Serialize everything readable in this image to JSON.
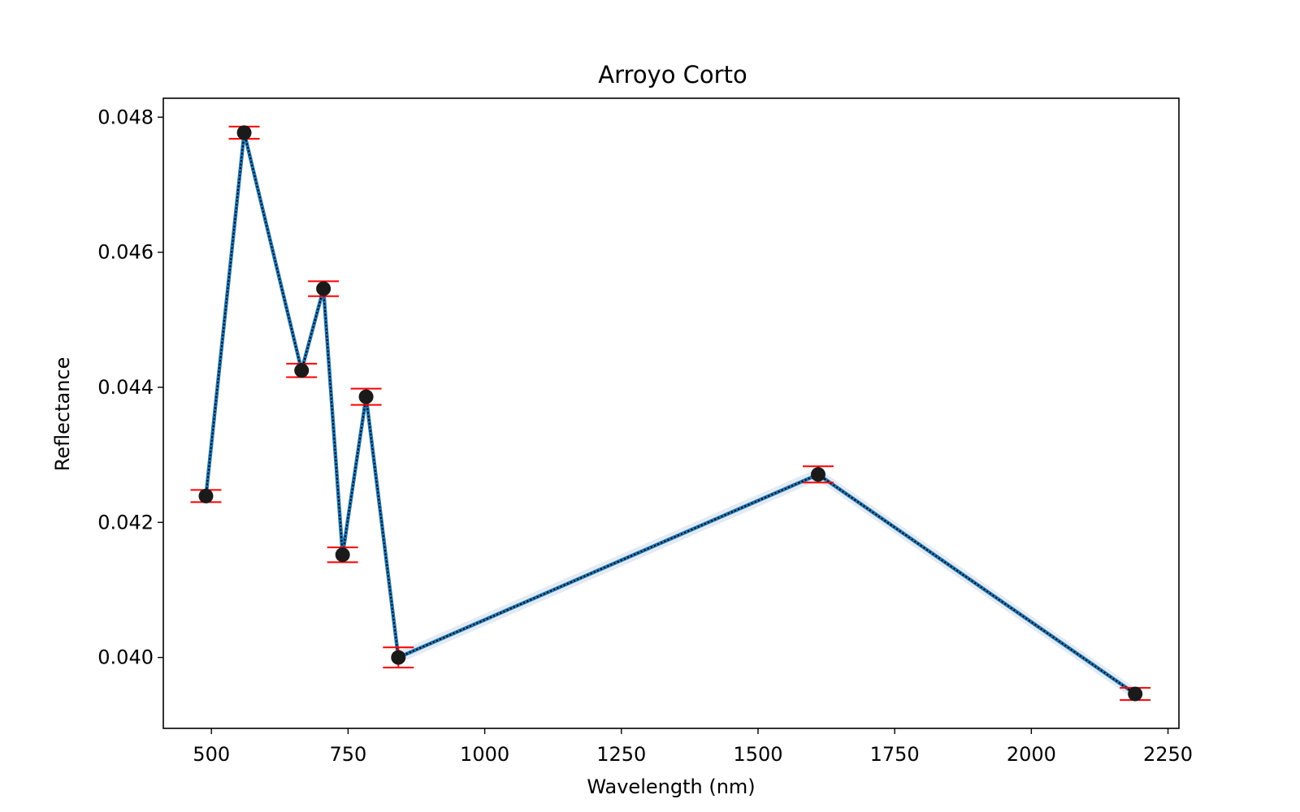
{
  "chart_data": {
    "type": "line",
    "title": "Arroyo Corto",
    "xlabel": "Wavelength (nm)",
    "ylabel": "Reflectance",
    "xlim": [
      412,
      2270
    ],
    "ylim": [
      0.03895,
      0.04828
    ],
    "xticks": [
      500,
      750,
      1000,
      1250,
      1500,
      1750,
      2000,
      2250
    ],
    "yticks": [
      0.04,
      0.042,
      0.044,
      0.046,
      0.048
    ],
    "ytick_labels": [
      "0.040",
      "0.042",
      "0.044",
      "0.046",
      "0.048"
    ],
    "grid": false,
    "series": [
      {
        "x": [
          490,
          560,
          665,
          705,
          740,
          783,
          842,
          1610,
          2190
        ],
        "y": [
          0.04239,
          0.04777,
          0.04425,
          0.04546,
          0.04152,
          0.04386,
          0.04,
          0.04271,
          0.03946
        ],
        "err": [
          9e-05,
          9e-05,
          0.0001,
          0.00011,
          0.00011,
          0.00012,
          0.00015,
          0.00012,
          9e-05
        ],
        "band": 9e-05,
        "line_color": "#1f77b4",
        "dash_color": "#000000",
        "marker_color": "#1a1a1a",
        "error_color": "#ff0000",
        "band_color": "#b0c4de"
      }
    ]
  }
}
